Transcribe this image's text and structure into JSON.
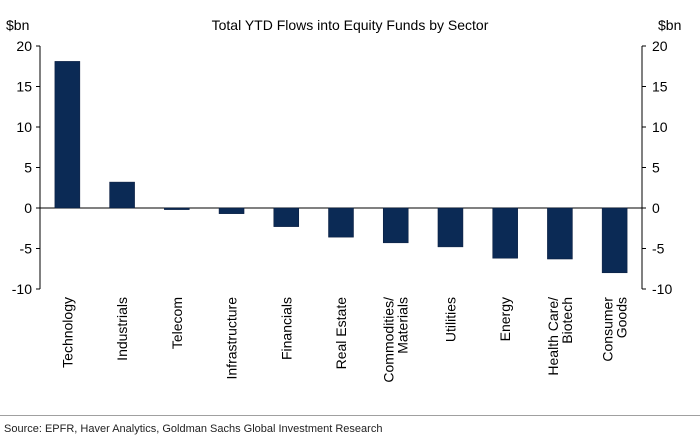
{
  "chart_data": {
    "type": "bar",
    "title": "Total YTD Flows into Equity Funds by Sector",
    "y_unit_label_left": "$bn",
    "y_unit_label_right": "$bn",
    "ylim": [
      -10,
      20
    ],
    "y_ticks": [
      20,
      15,
      10,
      5,
      0,
      -5,
      -10
    ],
    "grid": false,
    "legend": "none",
    "bar_color": "#0b2a55",
    "categories": [
      [
        "Technology"
      ],
      [
        "Industrials"
      ],
      [
        "Telecom"
      ],
      [
        "Infrastructure"
      ],
      [
        "Financials"
      ],
      [
        "Real Estate"
      ],
      [
        "Commodities/",
        "Materials"
      ],
      [
        "Utilities"
      ],
      [
        "Energy"
      ],
      [
        "Health Care/",
        "Biotech"
      ],
      [
        "Consumer",
        "Goods"
      ]
    ],
    "values": [
      18.1,
      3.2,
      -0.2,
      -0.7,
      -2.3,
      -3.6,
      -4.3,
      -4.8,
      -6.2,
      -6.3,
      -8.0
    ]
  },
  "source": "Source: EPFR, Haver Analytics, Goldman Sachs Global Investment Research"
}
